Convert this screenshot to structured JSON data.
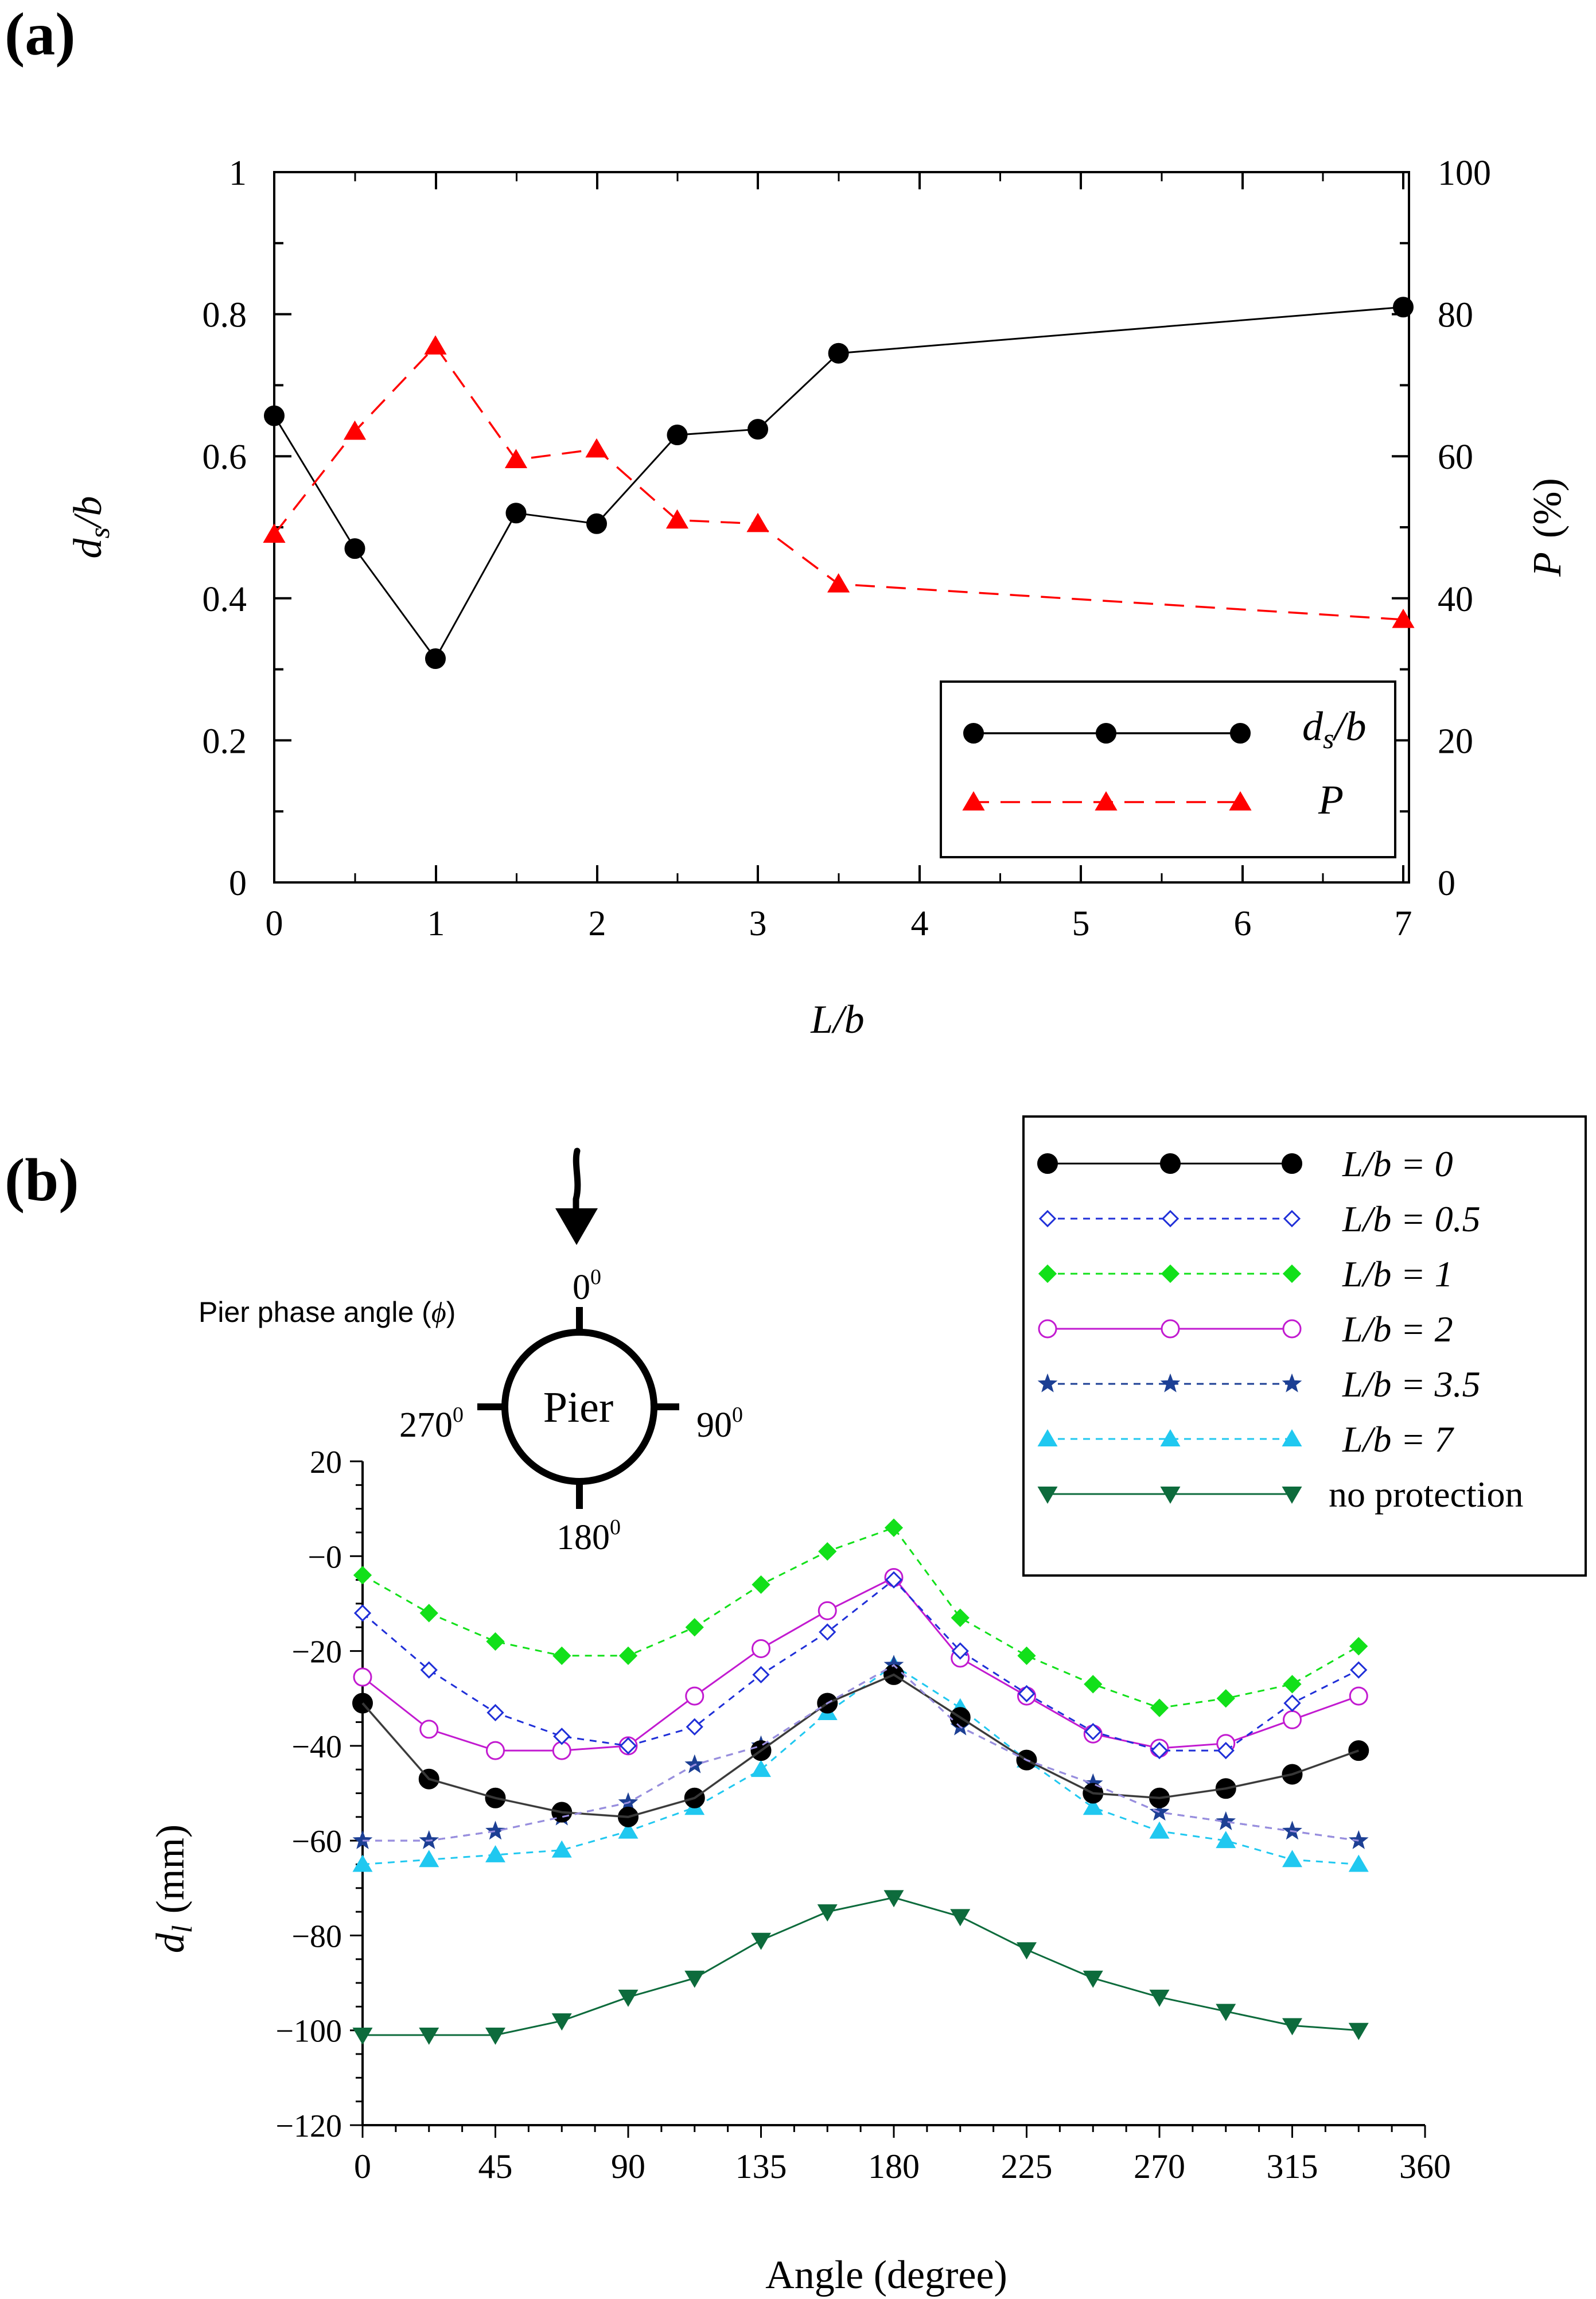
{
  "colors": {
    "black": "#000000",
    "red": "#ff0000",
    "blue": "#1f2fd8",
    "green": "#12e01a",
    "magenta": "#c21ad0",
    "navy": "#1c3f94",
    "cyan": "#20c8f0",
    "darkgreen": "#0d6b3c",
    "lavender": "#9a8ee0"
  },
  "chart_data": [
    {
      "type": "line",
      "panel_label": "(a)",
      "xlabel": "L/b",
      "ylabel_left": "d",
      "ylabel_left_sub": "s",
      "ylabel_left_tail": "/b",
      "ylabel_right": "P",
      "ylabel_right_unit": "(%)",
      "x_categories": [
        0,
        0.5,
        1,
        1.5,
        2,
        2.5,
        3,
        3.5,
        7
      ],
      "xticks": [
        "0",
        "1",
        "2",
        "3",
        "4",
        "5",
        "6",
        "7"
      ],
      "yticks_left": [
        "0",
        "0.2",
        "0.4",
        "0.6",
        "0.8",
        "1"
      ],
      "yticks_right": [
        "0",
        "20",
        "40",
        "60",
        "80",
        "100"
      ],
      "ylim_left": [
        0,
        1
      ],
      "ylim_right": [
        0,
        100
      ],
      "series": [
        {
          "name": "d_s/b",
          "legend_main": "d",
          "legend_sub": "s",
          "legend_tail": "/b",
          "axis": "left",
          "color": "#000000",
          "marker": "circle",
          "dash": "solid",
          "x": [
            0,
            0.5,
            1,
            1.5,
            2,
            2.5,
            3,
            3.5,
            7
          ],
          "values": [
            0.657,
            0.47,
            0.315,
            0.52,
            0.505,
            0.63,
            0.638,
            0.745,
            0.81
          ]
        },
        {
          "name": "P",
          "legend_main": "P",
          "axis": "right",
          "color": "#ff0000",
          "marker": "triangle-up",
          "dash": "long",
          "x": [
            0,
            0.5,
            1,
            1.5,
            2,
            2.5,
            3,
            3.5,
            7
          ],
          "values": [
            49,
            63.5,
            75.5,
            59.5,
            61,
            51,
            50.5,
            42,
            37
          ]
        }
      ],
      "legend_position": "bottom-right"
    },
    {
      "type": "line",
      "panel_label": "(b)",
      "xlabel": "Angle (degree)",
      "ylabel": "d",
      "ylabel_sub": "l",
      "ylabel_unit": "(mm)",
      "xlim": [
        0,
        360
      ],
      "ylim": [
        -120,
        20
      ],
      "xticks": [
        "0",
        "45",
        "90",
        "135",
        "180",
        "225",
        "270",
        "315",
        "360"
      ],
      "yticks": [
        "20",
        "−0",
        "−20",
        "−40",
        "−60",
        "−80",
        "−100",
        "−120"
      ],
      "x": [
        0,
        22.5,
        45,
        67.5,
        90,
        112.5,
        135,
        157.5,
        180,
        202.5,
        225,
        247.5,
        270,
        292.5,
        315,
        337.5
      ],
      "series": [
        {
          "name": "L/b = 0",
          "legend_text": "L/b = 0",
          "color": "#000000",
          "marker": "circle",
          "dash": "solid",
          "values": [
            -31,
            -47,
            -51,
            -54,
            -55,
            -51,
            -41,
            -31,
            -25,
            -34,
            -43,
            -50,
            -51,
            -49,
            -46,
            -41
          ]
        },
        {
          "name": "L/b = 0.5",
          "legend_text": "L/b = 0.5",
          "color": "#1f2fd8",
          "marker": "diamond-open",
          "dash": "short",
          "values": [
            -12,
            -24,
            -33,
            -38,
            -40,
            -36,
            -25,
            -16,
            -5,
            -20,
            -29,
            -37,
            -41,
            -41,
            -31,
            -24
          ]
        },
        {
          "name": "L/b = 1",
          "legend_text": "L/b = 1",
          "color": "#12e01a",
          "marker": "diamond",
          "dash": "short",
          "values": [
            -4,
            -12,
            -18,
            -21,
            -21,
            -15,
            -6,
            1,
            6,
            -13,
            -21,
            -27,
            -32,
            -30,
            -27,
            -19
          ]
        },
        {
          "name": "L/b = 2",
          "legend_text": "L/b = 2",
          "color": "#c21ad0",
          "marker": "circle-open",
          "dash": "solid",
          "values": [
            -25.5,
            -36.5,
            -41,
            -41,
            -40,
            -29.5,
            -19.5,
            -11.5,
            -4.5,
            -21.5,
            -29.5,
            -37.5,
            -40.5,
            -39.5,
            -34.5,
            -29.5
          ]
        },
        {
          "name": "L/b = 3.5",
          "legend_text": "L/b = 3.5",
          "color": "#1c3f94",
          "marker": "star",
          "dash": "short",
          "values": [
            -60,
            -60,
            -58,
            -55,
            -52,
            -44,
            -40,
            -31,
            -23,
            -36,
            -43,
            -48,
            -54,
            -56,
            -58,
            -60
          ]
        },
        {
          "name": "L/b = 7",
          "legend_text": "L/b = 7",
          "color": "#20c8f0",
          "marker": "triangle-up",
          "dash": "short",
          "values": [
            -65,
            -64,
            -63,
            -62,
            -58,
            -53,
            -45,
            -33,
            -23,
            -32,
            -43,
            -53,
            -58,
            -60,
            -64,
            -65
          ]
        },
        {
          "name": "no protection",
          "legend_text": "no protection",
          "color": "#0d6b3c",
          "marker": "triangle-down",
          "dash": "solid",
          "values": [
            -101,
            -101,
            -101,
            -98,
            -93,
            -89,
            -81,
            -75,
            -72,
            -76,
            -83,
            -89,
            -93,
            -96,
            -99,
            -100
          ]
        }
      ],
      "legend_position": "top-right"
    }
  ],
  "inset": {
    "title": "Pier phase angle (",
    "title_symbol": "ϕ",
    "title_close": ")",
    "pier_label": "Pier",
    "angle_0": "0",
    "angle_90": "90",
    "angle_180": "180",
    "angle_270": "270",
    "degree_mark": "0"
  }
}
